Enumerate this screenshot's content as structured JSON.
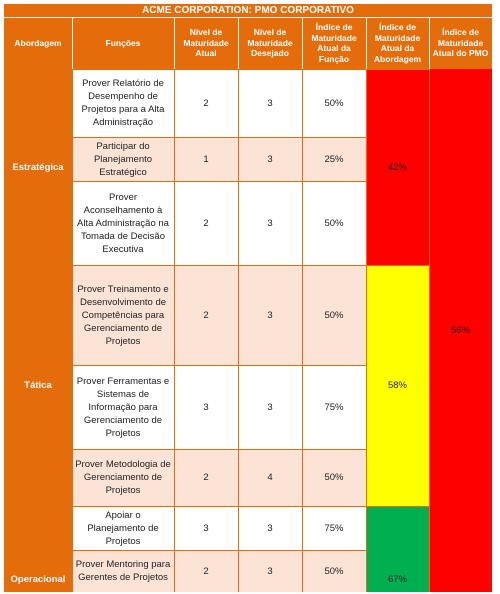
{
  "table": {
    "title": "ACME CORPORATION: PMO CORPORATIVO",
    "headers": {
      "abordagem": "Abordagem",
      "funcoes": "Funções",
      "nivel_atual": "Nível de Maturidade Atual",
      "nivel_desejado": "Nível de Maturidade Desejado",
      "indice_funcao": "Índice de Maturidade Atual da Função",
      "indice_abordagem": "Índice de Maturidade Atual da Abordagem",
      "indice_pmo": "Índice de Maturidade Atual do PMO"
    },
    "groups": [
      {
        "name": "Estratégica",
        "index": "42%",
        "color": "#ff0000"
      },
      {
        "name": "Tática",
        "index": "58%",
        "color": "#ffff00"
      },
      {
        "name": "Operacional",
        "index": "67%",
        "color": "#00b050"
      }
    ],
    "rows": [
      {
        "funcao": "Prover Relatório de Desempenho de Projetos para a Alta Administração",
        "atual": "2",
        "desejado": "3",
        "indice": "50%"
      },
      {
        "funcao": "Participar do Planejamento Estratégico",
        "atual": "1",
        "desejado": "3",
        "indice": "25%"
      },
      {
        "funcao": "Prover Aconselhamento à Alta Administração na Tomada de Decisão Executiva",
        "atual": "2",
        "desejado": "3",
        "indice": "50%"
      },
      {
        "funcao": "Prover Treinamento e Desenvolvimento de Competências para Gerenciamento de Projetos",
        "atual": "2",
        "desejado": "3",
        "indice": "50%"
      },
      {
        "funcao": "Prover Ferramentas e Sistemas de Informação para Gerenciamento de Projetos",
        "atual": "3",
        "desejado": "3",
        "indice": "75%"
      },
      {
        "funcao": "Prover Metodologia de Gerenciamento de Projetos",
        "atual": "2",
        "desejado": "4",
        "indice": "50%"
      },
      {
        "funcao": "Apoiar o Planejamento de Projetos",
        "atual": "3",
        "desejado": "3",
        "indice": "75%"
      },
      {
        "funcao": "Prover Mentoring para Gerentes de Projetos",
        "atual": "2",
        "desejado": "3",
        "indice": "50%"
      }
    ],
    "pmo": {
      "index": "56%",
      "color": "#ff0000"
    }
  }
}
